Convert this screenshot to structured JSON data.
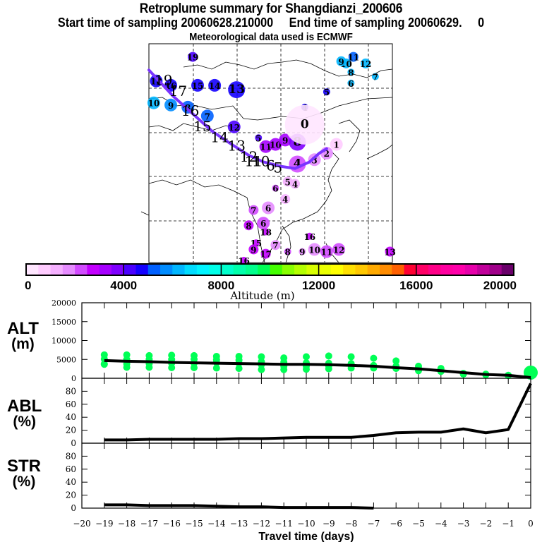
{
  "header": {
    "title": "Retroplume summary for Shangdianzi_200606",
    "subtitle": "Start time of sampling 20060628.210000     End time of sampling 20060629.     0",
    "met_line": "Meteorological data used is ECMWF"
  },
  "chart_data": [
    {
      "type": "scatter",
      "name": "retroplume-map",
      "description": "Map of retroplume cluster centers labeled by days before sampling, colored by altitude",
      "grid": true,
      "colorbar": {
        "label": "Altitude (m)",
        "range": [
          0,
          20000
        ],
        "tick_labels": [
          "0",
          "4000",
          "8000",
          "12000",
          "16000",
          "20000"
        ],
        "colors": [
          "#ffe6ff",
          "#ffccff",
          "#f5b0ff",
          "#e68cff",
          "#d24bff",
          "#c300ff",
          "#a600ff",
          "#7f00ff",
          "#4a00ff",
          "#1400ff",
          "#0060ff",
          "#008cff",
          "#00b6ff",
          "#00dcff",
          "#00f4ff",
          "#00ffe8",
          "#00ffcc",
          "#00ffaa",
          "#00ff8c",
          "#00ff55",
          "#44ff00",
          "#88ff00",
          "#b4ff00",
          "#d8ff00",
          "#eaff00",
          "#ffff00",
          "#ffe000",
          "#ffc800",
          "#ffaa00",
          "#ff8c00",
          "#ff6000",
          "#ff0033",
          "#ff0066",
          "#ff0088",
          "#ff00a0",
          "#ff00aa",
          "#e600aa",
          "#c0009a",
          "#a0008a",
          "#6a006a"
        ]
      },
      "labels": [
        {
          "day": "19",
          "color": "#4a00ff",
          "size": "s",
          "gx": 0.18,
          "gy": 0.06
        },
        {
          "day": "11",
          "color": "#0060ff",
          "size": "s",
          "gx": 0.84,
          "gy": 0.06
        },
        {
          "day": "10",
          "color": "#00b6ff",
          "size": "s",
          "gx": 0.81,
          "gy": 0.09
        },
        {
          "day": "9",
          "color": "#00b6ff",
          "size": "s",
          "gx": 0.79,
          "gy": 0.08
        },
        {
          "day": "12",
          "color": "#00b6ff",
          "size": "s",
          "gx": 0.89,
          "gy": 0.09
        },
        {
          "day": "7",
          "color": "#00b6ff",
          "size": "xs",
          "gx": 0.93,
          "gy": 0.15
        },
        {
          "day": "8",
          "color": "#00b6ff",
          "size": "xs",
          "gx": 0.83,
          "gy": 0.13
        },
        {
          "day": "6",
          "color": "#00b6ff",
          "size": "xs",
          "gx": 0.83,
          "gy": 0.18
        },
        {
          "day": "5",
          "color": "#1400ff",
          "size": "xs",
          "gx": 0.73,
          "gy": 0.22
        },
        {
          "day": "4",
          "color": "#1400ff",
          "size": "xs",
          "gx": 0.64,
          "gy": 0.29
        },
        {
          "day": "18",
          "color": "#1400ff",
          "size": "m",
          "gx": 0.03,
          "gy": 0.17
        },
        {
          "day": "16",
          "color": "#1400ff",
          "size": "m",
          "gx": 0.09,
          "gy": 0.19
        },
        {
          "day": "15",
          "color": "#1400ff",
          "size": "m",
          "gx": 0.2,
          "gy": 0.19
        },
        {
          "day": "14",
          "color": "#1400ff",
          "size": "m",
          "gx": 0.27,
          "gy": 0.19
        },
        {
          "day": "13",
          "color": "#1400ff",
          "size": "l",
          "gx": 0.36,
          "gy": 0.21
        },
        {
          "day": "10",
          "color": "#00b6ff",
          "size": "m",
          "gx": 0.02,
          "gy": 0.27
        },
        {
          "day": "9",
          "color": "#008cff",
          "size": "m",
          "gx": 0.09,
          "gy": 0.28
        },
        {
          "day": "8",
          "color": "#0060ff",
          "size": "m",
          "gx": 0.16,
          "gy": 0.29
        },
        {
          "day": "7",
          "color": "#0060ff",
          "size": "m",
          "gx": 0.24,
          "gy": 0.33
        },
        {
          "day": "12",
          "color": "#4a00ff",
          "size": "m",
          "gx": 0.35,
          "gy": 0.38
        },
        {
          "day": "5",
          "color": "#4a00ff",
          "size": "xs",
          "gx": 0.45,
          "gy": 0.43
        },
        {
          "day": "11",
          "color": "#a600ff",
          "size": "m",
          "gx": 0.48,
          "gy": 0.47
        },
        {
          "day": "10",
          "color": "#a600ff",
          "size": "m",
          "gx": 0.52,
          "gy": 0.46
        },
        {
          "day": "9",
          "color": "#a600ff",
          "size": "m",
          "gx": 0.56,
          "gy": 0.44
        },
        {
          "day": "8",
          "color": "#7f00ff",
          "size": "l",
          "gx": 0.61,
          "gy": 0.45
        },
        {
          "day": "0",
          "color": "#ffe6ff",
          "size": "xl",
          "gx": 0.64,
          "gy": 0.37
        },
        {
          "day": "1",
          "color": "#ffccff",
          "size": "m",
          "gx": 0.77,
          "gy": 0.46
        },
        {
          "day": "2",
          "color": "#e68cff",
          "size": "m",
          "gx": 0.73,
          "gy": 0.5
        },
        {
          "day": "3",
          "color": "#e68cff",
          "size": "m",
          "gx": 0.68,
          "gy": 0.53
        },
        {
          "day": "4",
          "color": "#d24bff",
          "size": "l",
          "gx": 0.61,
          "gy": 0.55
        },
        {
          "day": "5",
          "color": "#f5b0ff",
          "size": "s",
          "gx": 0.57,
          "gy": 0.63
        },
        {
          "day": "4",
          "color": "#f5b0ff",
          "size": "s",
          "gx": 0.6,
          "gy": 0.64
        },
        {
          "day": "6",
          "color": "#d24bff",
          "size": "xs",
          "gx": 0.52,
          "gy": 0.66
        },
        {
          "day": "4",
          "color": "#f5b0ff",
          "size": "s",
          "gx": 0.56,
          "gy": 0.71
        },
        {
          "day": "7",
          "color": "#d24bff",
          "size": "s",
          "gx": 0.43,
          "gy": 0.76
        },
        {
          "day": "6",
          "color": "#e68cff",
          "size": "m",
          "gx": 0.49,
          "gy": 0.75
        },
        {
          "day": "6",
          "color": "#d24bff",
          "size": "m",
          "gx": 0.47,
          "gy": 0.82
        },
        {
          "day": "8",
          "color": "#c300ff",
          "size": "s",
          "gx": 0.41,
          "gy": 0.83
        },
        {
          "day": "18",
          "color": "#c300ff",
          "size": "xs",
          "gx": 0.48,
          "gy": 0.86
        },
        {
          "day": "15",
          "color": "#c300ff",
          "size": "xs",
          "gx": 0.44,
          "gy": 0.91
        },
        {
          "day": "9",
          "color": "#c300ff",
          "size": "s",
          "gx": 0.43,
          "gy": 0.94
        },
        {
          "day": "17",
          "color": "#c300ff",
          "size": "s",
          "gx": 0.48,
          "gy": 0.96
        },
        {
          "day": "7",
          "color": "#e68cff",
          "size": "s",
          "gx": 0.52,
          "gy": 0.92
        },
        {
          "day": "16",
          "color": "#c300ff",
          "size": "xs",
          "gx": 0.39,
          "gy": 0.99
        },
        {
          "day": "16",
          "color": "#c300ff",
          "size": "xs",
          "gx": 0.66,
          "gy": 0.88
        },
        {
          "day": "8",
          "color": "#d24bff",
          "size": "xs",
          "gx": 0.57,
          "gy": 0.95
        },
        {
          "day": "9",
          "color": "#e68cff",
          "size": "xs",
          "gx": 0.63,
          "gy": 0.95
        },
        {
          "day": "10",
          "color": "#e68cff",
          "size": "m",
          "gx": 0.68,
          "gy": 0.94
        },
        {
          "day": "11",
          "color": "#d24bff",
          "size": "m",
          "gx": 0.73,
          "gy": 0.95
        },
        {
          "day": "12",
          "color": "#d24bff",
          "size": "m",
          "gx": 0.78,
          "gy": 0.94
        },
        {
          "day": "13",
          "color": "#c300ff",
          "size": "s",
          "gx": 0.99,
          "gy": 0.95
        }
      ],
      "mean_track_labels": [
        {
          "day": "19",
          "gx": 0.06,
          "gy": 0.17
        },
        {
          "day": "17",
          "gx": 0.12,
          "gy": 0.22
        },
        {
          "day": "16",
          "gx": 0.17,
          "gy": 0.31
        },
        {
          "day": "15",
          "gx": 0.22,
          "gy": 0.38
        },
        {
          "day": "14",
          "gx": 0.29,
          "gy": 0.43
        },
        {
          "day": "13",
          "gx": 0.36,
          "gy": 0.47
        },
        {
          "day": "12",
          "gx": 0.41,
          "gy": 0.52
        },
        {
          "day": "11",
          "gx": 0.43,
          "gy": 0.54
        },
        {
          "day": "10",
          "gx": 0.46,
          "gy": 0.54
        },
        {
          "day": "6",
          "gx": 0.5,
          "gy": 0.56
        },
        {
          "day": "5",
          "gx": 0.53,
          "gy": 0.57
        }
      ]
    },
    {
      "type": "line",
      "name": "altitude-panel",
      "ylabel": "ALT (m)",
      "ylim": [
        0,
        20000
      ],
      "yticks": [
        "0",
        "5000",
        "10000",
        "15000",
        "20000"
      ],
      "x": [
        -19,
        -18,
        -17,
        -16,
        -15,
        -14,
        -13,
        -12,
        -11,
        -10,
        -9,
        -8,
        -7,
        -6,
        -5,
        -4,
        -3,
        -2,
        -1,
        0
      ],
      "series": [
        {
          "name": "mean altitude",
          "values": [
            4700,
            4500,
            4400,
            4200,
            4100,
            4000,
            3900,
            3800,
            3700,
            3700,
            3600,
            3400,
            3200,
            2800,
            2500,
            2000,
            1500,
            1000,
            800,
            200
          ]
        }
      ],
      "cluster_points": [
        {
          "x": -19,
          "values": [
            6200,
            5100,
            3800,
            3700
          ]
        },
        {
          "x": -18,
          "values": [
            6200,
            5000,
            3800,
            2900
          ]
        },
        {
          "x": -17,
          "values": [
            6000,
            5000,
            3900,
            2900
          ]
        },
        {
          "x": -16,
          "values": [
            6100,
            5000,
            4000,
            2800
          ]
        },
        {
          "x": -15,
          "values": [
            6000,
            5000,
            4000,
            2800
          ]
        },
        {
          "x": -14,
          "values": [
            5800,
            4900,
            4200,
            2700
          ]
        },
        {
          "x": -13,
          "values": [
            5800,
            4800,
            4000,
            2600
          ]
        },
        {
          "x": -12,
          "values": [
            5700,
            4400,
            3600,
            2300
          ]
        },
        {
          "x": -11,
          "values": [
            5400,
            4300,
            3200,
            2300
          ]
        },
        {
          "x": -10,
          "values": [
            5700,
            4100,
            3200,
            2400
          ]
        },
        {
          "x": -9,
          "values": [
            5900,
            4000,
            3300,
            2500
          ]
        },
        {
          "x": -8,
          "values": [
            5700,
            3900,
            3400,
            2700
          ]
        },
        {
          "x": -7,
          "values": [
            5300,
            3400,
            2700
          ]
        },
        {
          "x": -6,
          "values": [
            4600,
            3200,
            2600
          ]
        },
        {
          "x": -5,
          "values": [
            3200,
            2700,
            2000
          ]
        },
        {
          "x": -4,
          "values": [
            2600,
            2200,
            1800
          ]
        },
        {
          "x": -3,
          "values": [
            1300,
            1100
          ]
        },
        {
          "x": -2,
          "values": [
            1100,
            900
          ]
        },
        {
          "x": -1,
          "values": [
            800,
            700
          ]
        },
        {
          "x": 0,
          "values": [
            1500
          ]
        }
      ],
      "point_color": "#00ff55"
    },
    {
      "type": "line",
      "name": "abl-panel",
      "ylabel": "ABL (%)",
      "ylim": [
        0,
        100
      ],
      "yticks": [
        "0",
        "20",
        "40",
        "60",
        "80"
      ],
      "x": [
        -19,
        -18,
        -17,
        -16,
        -15,
        -14,
        -13,
        -12,
        -11,
        -10,
        -9,
        -8,
        -7,
        -6,
        -5,
        -4,
        -3,
        -2,
        -1,
        0
      ],
      "series": [
        {
          "name": "ABL fraction",
          "values": [
            5,
            5,
            6,
            6,
            6,
            6,
            7,
            7,
            8,
            9,
            9,
            9,
            12,
            16,
            17,
            17,
            22,
            16,
            21,
            92
          ]
        }
      ]
    },
    {
      "type": "line",
      "name": "str-panel",
      "ylabel": "STR (%)",
      "ylim": [
        0,
        100
      ],
      "yticks": [
        "0",
        "20",
        "40",
        "60",
        "80"
      ],
      "xlabel": "Travel time (days)",
      "xlim": [
        -20,
        0
      ],
      "xticks": [
        "-20",
        "-19",
        "-18",
        "-17",
        "-16",
        "-15",
        "-14",
        "-13",
        "-12",
        "-11",
        "-10",
        "-9",
        "-8",
        "-7",
        "-6",
        "-5",
        "-4",
        "-3",
        "-2",
        "-1",
        "0"
      ],
      "x": [
        -19,
        -18,
        -17,
        -16,
        -15,
        -14,
        -13,
        -12,
        -11,
        -10,
        -9,
        -8,
        -7
      ],
      "series": [
        {
          "name": "STR fraction",
          "values": [
            5,
            5,
            4,
            4,
            4,
            3,
            2,
            2,
            1,
            1,
            1,
            1,
            0
          ]
        }
      ]
    }
  ],
  "panels": {
    "alt_label_1": "ALT",
    "alt_label_2": "(m)",
    "abl_label_1": "ABL",
    "abl_label_2": "(%)",
    "str_label_1": "STR",
    "str_label_2": "(%)",
    "xlabel": "Travel time (days)",
    "colorbar_label": "Altitude (m)"
  },
  "colors": {
    "track": "#7a33ff",
    "alt_points": "#00ff55"
  }
}
